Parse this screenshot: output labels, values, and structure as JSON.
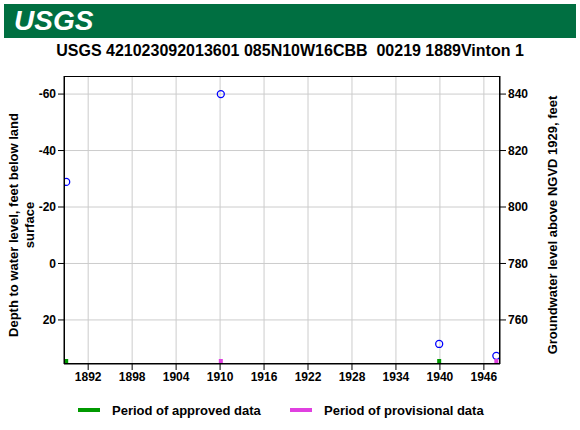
{
  "logo": "USGS",
  "chart_data": {
    "type": "scatter",
    "title": "USGS 421023092013601 085N10W16CBB  00219 1889Vinton 1",
    "y_label": "Depth to water level, feet below land surface",
    "y2_label": "Groundwater level above NGVD 1929, feet",
    "x": [
      1889.0,
      1910.1,
      1939.9,
      1947.7
    ],
    "values": [
      -28.9,
      -60,
      28.5,
      32.7
    ],
    "color": "#0000ff",
    "marker": "circle",
    "xlim": [
      1888.7,
      1948.2
    ],
    "xticks": [
      1892,
      1898,
      1904,
      1910,
      1916,
      1922,
      1928,
      1934,
      1940,
      1946
    ],
    "ylim": [
      35.6,
      -66.4
    ],
    "yticks": [
      -60,
      -40,
      -20,
      0,
      20
    ],
    "y2lim": [
      744.4,
      846.4
    ],
    "y2ticks": [
      760,
      780,
      800,
      820,
      840
    ],
    "grid": true,
    "periods": [
      {
        "name": "Period of approved data",
        "color": "#009900",
        "x": [
          1889.0,
          1939.9
        ]
      },
      {
        "name": "Period of provisional data",
        "color": "#e040e0",
        "x": [
          1910.1,
          1947.7
        ]
      }
    ]
  }
}
